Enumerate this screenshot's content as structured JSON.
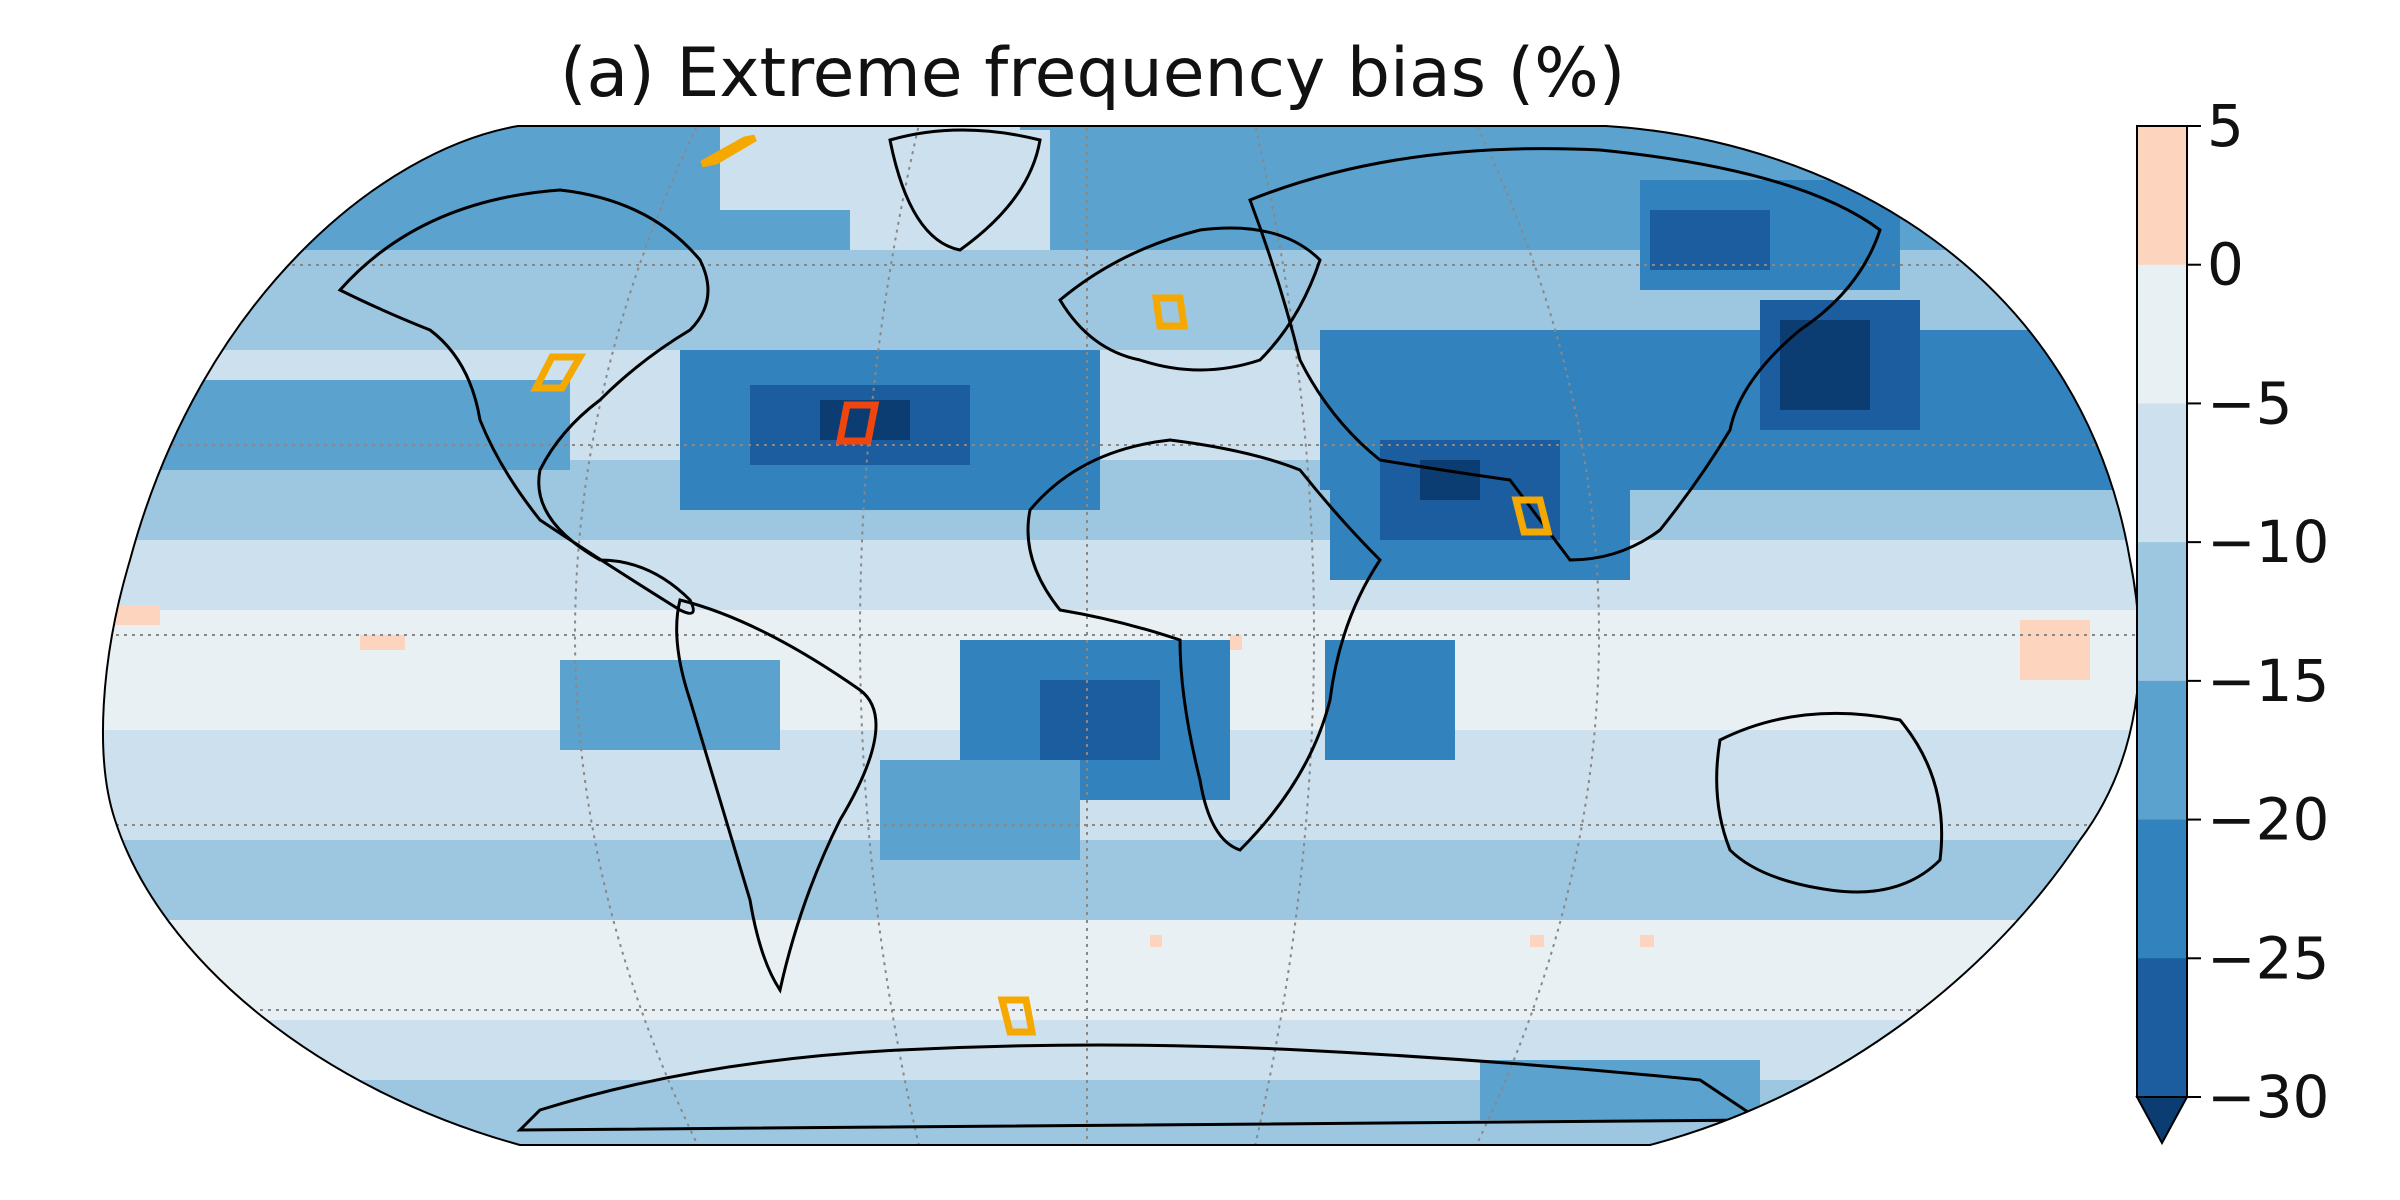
{
  "title": "(a) Extreme frequency bias (%)",
  "projection": "Robinson",
  "colorbar": {
    "orientation": "vertical",
    "extend": "min",
    "ticks": [
      "5",
      "0",
      "−5",
      "−10",
      "−15",
      "−20",
      "−25",
      "−30"
    ],
    "tick_values": [
      5,
      0,
      -5,
      -10,
      -15,
      -20,
      -25,
      -30
    ],
    "colors": [
      "#fdd5bf",
      "#e8f0f4",
      "#cce0ee",
      "#9dc7e1",
      "#5ba2cf",
      "#3282bd",
      "#1b5d9f"
    ],
    "under_color": "#0b3d72"
  },
  "graticule": {
    "style": "dotted",
    "color": "#888888"
  },
  "highlight_boxes": [
    {
      "name": "north-atlantic-box",
      "color": "#f0450f"
    },
    {
      "name": "greenland-box",
      "color": "#f5a800"
    },
    {
      "name": "western-us-box",
      "color": "#f5a800"
    },
    {
      "name": "europe-box",
      "color": "#f5a800"
    },
    {
      "name": "india-box",
      "color": "#f5a800"
    },
    {
      "name": "southern-ocean-box",
      "color": "#f5a800"
    }
  ]
}
